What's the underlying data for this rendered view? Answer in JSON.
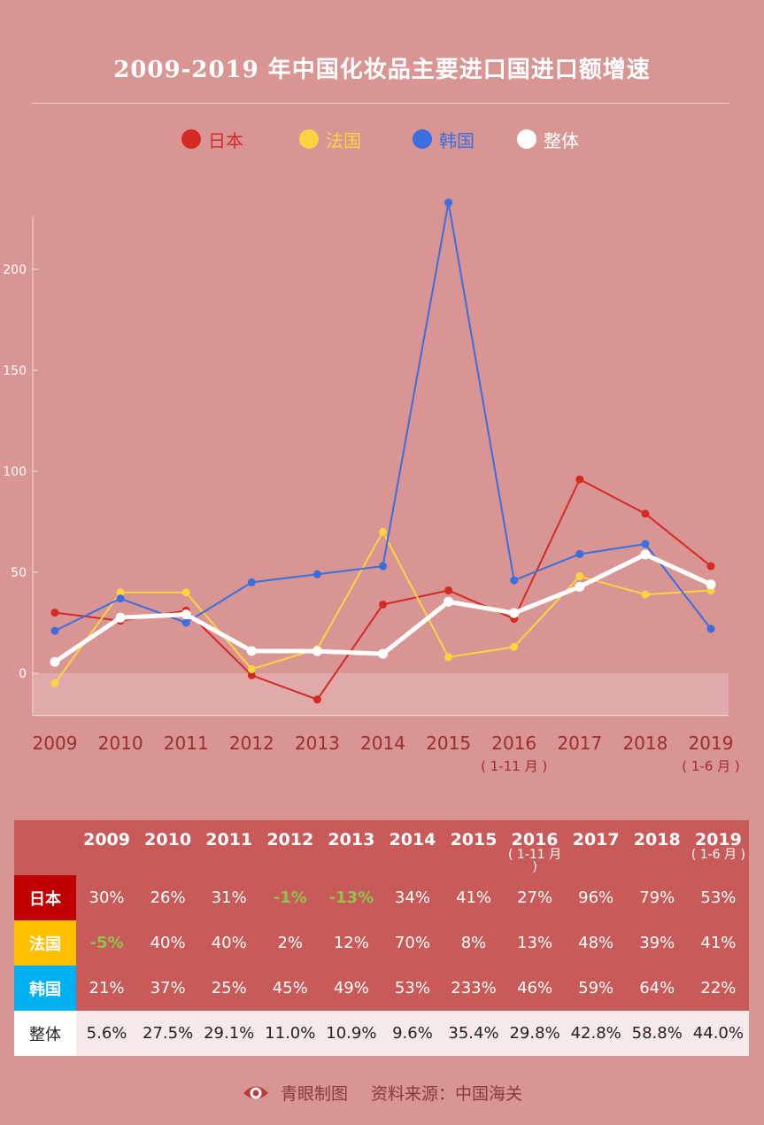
{
  "title": "2009-2019 年中国化妆品主要进口国进口额增速",
  "legend": [
    {
      "label": "日本",
      "color": "#d42a22"
    },
    {
      "label": "法国",
      "color": "#ffd23f"
    },
    {
      "label": "韩国",
      "color": "#3a6fe0"
    },
    {
      "label": "整体",
      "color": "#ffffff"
    }
  ],
  "chart_data": {
    "type": "line",
    "x": [
      "2009",
      "2010",
      "2011",
      "2012",
      "2013",
      "2014",
      "2015",
      "2016",
      "2017",
      "2018",
      "2019"
    ],
    "x_sublabels": [
      "",
      "",
      "",
      "",
      "",
      "",
      "",
      "( 1-11 月 )",
      "",
      "",
      "( 1-6 月 )"
    ],
    "ylim": [
      -20,
      226
    ],
    "yticks": [
      0,
      50,
      100,
      150,
      200
    ],
    "grid": false,
    "series": [
      {
        "name": "日本",
        "color": "#d42a22",
        "values": [
          30,
          26,
          31,
          -1,
          -13,
          34,
          41,
          27,
          96,
          79,
          53
        ]
      },
      {
        "name": "法国",
        "color": "#ffd23f",
        "values": [
          -5,
          40,
          40,
          2,
          12,
          70,
          8,
          13,
          48,
          39,
          41
        ]
      },
      {
        "name": "韩国",
        "color": "#3a6fe0",
        "values": [
          21,
          37,
          25,
          45,
          49,
          53,
          233,
          46,
          59,
          64,
          22
        ]
      },
      {
        "name": "整体",
        "color": "#ffffff",
        "values": [
          5.6,
          27.5,
          29.1,
          11.0,
          10.9,
          9.6,
          35.4,
          29.8,
          42.8,
          58.8,
          44.0
        ]
      }
    ]
  },
  "table": {
    "years": [
      "2009",
      "2010",
      "2011",
      "2012",
      "2013",
      "2014",
      "2015",
      "2016",
      "2017",
      "2018",
      "2019"
    ],
    "year_subs": [
      "",
      "",
      "",
      "",
      "",
      "",
      "",
      "( 1-11 月 )",
      "",
      "",
      "( 1-6 月 )"
    ],
    "rows": [
      {
        "label": "日本",
        "color": "#c00000",
        "type": "country",
        "values": [
          "30%",
          "26%",
          "31%",
          "-1%",
          "-13%",
          "34%",
          "41%",
          "27%",
          "96%",
          "79%",
          "53%"
        ]
      },
      {
        "label": "法国",
        "color": "#ffc000",
        "type": "country",
        "values": [
          "-5%",
          "40%",
          "40%",
          "2%",
          "12%",
          "70%",
          "8%",
          "13%",
          "48%",
          "39%",
          "41%"
        ]
      },
      {
        "label": "韩国",
        "color": "#00b0f0",
        "type": "country",
        "values": [
          "21%",
          "37%",
          "25%",
          "45%",
          "49%",
          "53%",
          "233%",
          "46%",
          "59%",
          "64%",
          "22%"
        ]
      },
      {
        "label": "整体",
        "color": "#ffffff",
        "type": "overall",
        "values": [
          "5.6%",
          "27.5%",
          "29.1%",
          "11.0%",
          "10.9%",
          "9.6%",
          "35.4%",
          "29.8%",
          "42.8%",
          "58.8%",
          "44.0%"
        ]
      }
    ]
  },
  "footer": {
    "logo_icon": "eye-logo-icon",
    "brand": "青眼制图",
    "source": "资料来源：中国海关"
  }
}
